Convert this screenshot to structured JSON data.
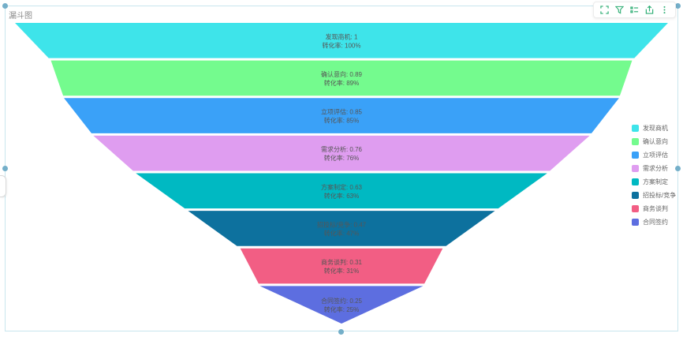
{
  "panel": {
    "title": "漏斗图"
  },
  "toolbar": {
    "accent": "#2fae74",
    "icons": [
      "fullscreen-icon",
      "filter-icon",
      "list-icon",
      "export-icon",
      "more-icon"
    ]
  },
  "selection": {
    "handle_color": "#74afc9",
    "border_color": "#c9e6ee"
  },
  "chart_data": {
    "type": "funnel",
    "title": "漏斗图",
    "sort": "descending",
    "legend_position": "right",
    "label_color": "#565656",
    "categories": [
      "发现商机",
      "确认意向",
      "立项评估",
      "需求分析",
      "方案制定",
      "招投标/竞争",
      "商务谈判",
      "合同签约"
    ],
    "values": [
      1,
      0.89,
      0.85,
      0.76,
      0.63,
      0.47,
      0.31,
      0.25
    ],
    "conversion_rates": [
      "100%",
      "89%",
      "85%",
      "76%",
      "63%",
      "47%",
      "31%",
      "25%"
    ],
    "colors": [
      "#3ee4ea",
      "#74fb8e",
      "#3aa1f8",
      "#df9df0",
      "#00b9c2",
      "#0d719e",
      "#f25e84",
      "#5d6ee0"
    ],
    "series": [
      {
        "name": "发现商机",
        "value": 1,
        "color": "#3ee4ea",
        "label_line1": "发现商机: 1",
        "label_line2": "转化率: 100%"
      },
      {
        "name": "确认意向",
        "value": 0.89,
        "color": "#74fb8e",
        "label_line1": "确认意向: 0.89",
        "label_line2": "转化率: 89%"
      },
      {
        "name": "立项评估",
        "value": 0.85,
        "color": "#3aa1f8",
        "label_line1": "立项评估: 0.85",
        "label_line2": "转化率: 85%"
      },
      {
        "name": "需求分析",
        "value": 0.76,
        "color": "#df9df0",
        "label_line1": "需求分析: 0.76",
        "label_line2": "转化率: 76%"
      },
      {
        "name": "方案制定",
        "value": 0.63,
        "color": "#00b9c2",
        "label_line1": "方案制定: 0.63",
        "label_line2": "转化率: 63%"
      },
      {
        "name": "招投标/竞争",
        "value": 0.47,
        "color": "#0d719e",
        "label_line1": "招投标/竞争: 0.47",
        "label_line2": "转化率: 47%"
      },
      {
        "name": "商务谈判",
        "value": 0.31,
        "color": "#f25e84",
        "label_line1": "商务谈判: 0.31",
        "label_line2": "转化率: 31%"
      },
      {
        "name": "合同签约",
        "value": 0.25,
        "color": "#5d6ee0",
        "label_line1": "合同签约: 0.25",
        "label_line2": "转化率: 25%"
      }
    ]
  }
}
